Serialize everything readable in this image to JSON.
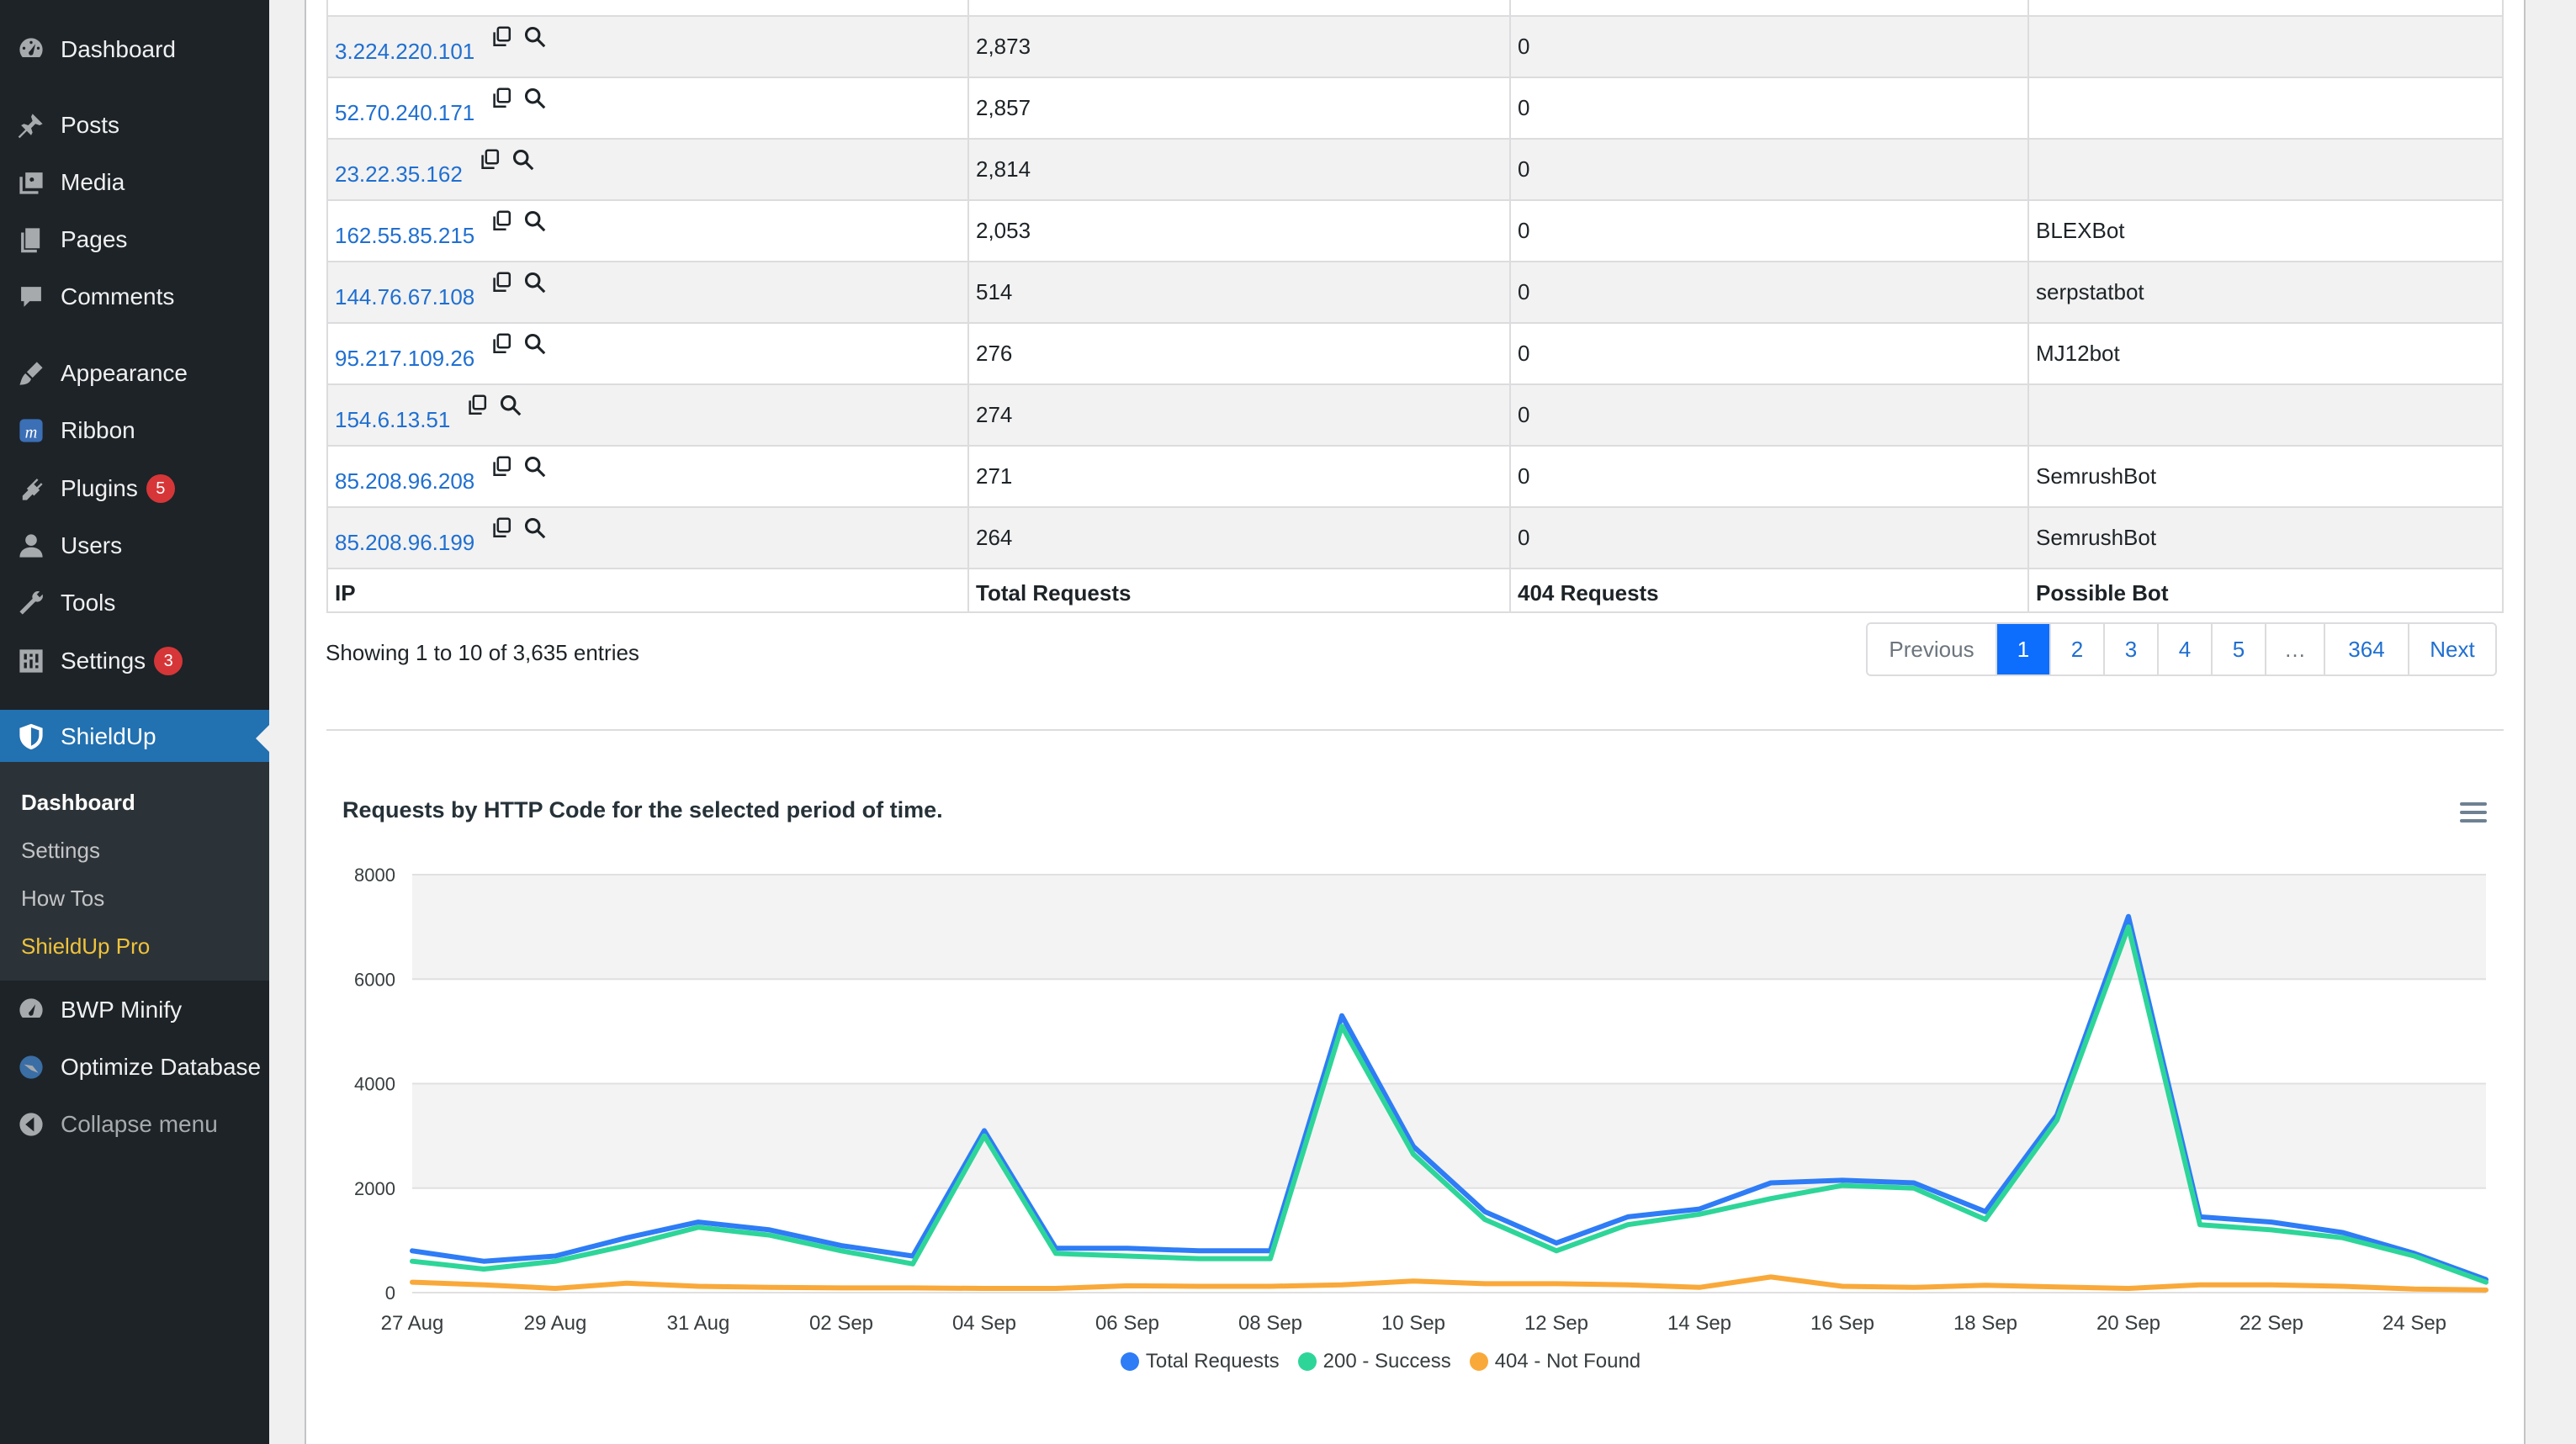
{
  "sidebar": {
    "items": [
      {
        "label": "Dashboard",
        "icon": "dashboard-icon"
      },
      {
        "label": "Posts",
        "icon": "pin-icon"
      },
      {
        "label": "Media",
        "icon": "media-icon"
      },
      {
        "label": "Pages",
        "icon": "pages-icon"
      },
      {
        "label": "Comments",
        "icon": "comment-icon"
      },
      {
        "label": "Appearance",
        "icon": "brush-icon"
      },
      {
        "label": "Ribbon",
        "icon": "ribbon-icon"
      },
      {
        "label": "Plugins",
        "icon": "plugin-icon",
        "badge": "5"
      },
      {
        "label": "Users",
        "icon": "user-icon"
      },
      {
        "label": "Tools",
        "icon": "wrench-icon"
      },
      {
        "label": "Settings",
        "icon": "settings-icon",
        "badge": "3"
      },
      {
        "label": "ShieldUp",
        "icon": "shield-icon"
      },
      {
        "label": "BWP Minify",
        "icon": "dashboard-icon"
      },
      {
        "label": "Optimize Database",
        "icon": "database-icon"
      },
      {
        "label": "Collapse menu",
        "icon": "collapse-icon"
      }
    ],
    "submenu": [
      "Dashboard",
      "Settings",
      "How Tos",
      "ShieldUp Pro"
    ]
  },
  "table": {
    "headers": [
      "IP",
      "Total Requests",
      "404 Requests",
      "Possible Bot"
    ],
    "rows": [
      {
        "ip": "3.224.220.101",
        "total": "2,873",
        "r404": "0",
        "bot": ""
      },
      {
        "ip": "52.70.240.171",
        "total": "2,857",
        "r404": "0",
        "bot": ""
      },
      {
        "ip": "23.22.35.162",
        "total": "2,814",
        "r404": "0",
        "bot": ""
      },
      {
        "ip": "162.55.85.215",
        "total": "2,053",
        "r404": "0",
        "bot": "BLEXBot"
      },
      {
        "ip": "144.76.67.108",
        "total": "514",
        "r404": "0",
        "bot": "serpstatbot"
      },
      {
        "ip": "95.217.109.26",
        "total": "276",
        "r404": "0",
        "bot": "MJ12bot"
      },
      {
        "ip": "154.6.13.51",
        "total": "274",
        "r404": "0",
        "bot": ""
      },
      {
        "ip": "85.208.96.208",
        "total": "271",
        "r404": "0",
        "bot": "SemrushBot"
      },
      {
        "ip": "85.208.96.199",
        "total": "264",
        "r404": "0",
        "bot": "SemrushBot"
      }
    ]
  },
  "entries_info": "Showing 1 to 10 of 3,635 entries",
  "pagination": {
    "previous": "Previous",
    "pages": [
      "1",
      "2",
      "3",
      "4",
      "5",
      "…",
      "364"
    ],
    "current": "1",
    "next": "Next"
  },
  "chart_data": {
    "type": "line",
    "title": "Requests by HTTP Code for the selected period of time.",
    "ylim": [
      0,
      8000
    ],
    "yticks": [
      0,
      2000,
      4000,
      6000,
      8000
    ],
    "x": [
      "27 Aug",
      "28 Aug",
      "29 Aug",
      "30 Aug",
      "31 Aug",
      "01 Sep",
      "02 Sep",
      "03 Sep",
      "04 Sep",
      "05 Sep",
      "06 Sep",
      "07 Sep",
      "08 Sep",
      "09 Sep",
      "10 Sep",
      "11 Sep",
      "12 Sep",
      "13 Sep",
      "14 Sep",
      "15 Sep",
      "16 Sep",
      "17 Sep",
      "18 Sep",
      "19 Sep",
      "20 Sep",
      "21 Sep",
      "22 Sep",
      "23 Sep",
      "24 Sep",
      "25 Sep"
    ],
    "xtick_labels": [
      "27 Aug",
      "29 Aug",
      "31 Aug",
      "02 Sep",
      "04 Sep",
      "06 Sep",
      "08 Sep",
      "10 Sep",
      "12 Sep",
      "14 Sep",
      "16 Sep",
      "18 Sep",
      "20 Sep",
      "22 Sep",
      "24 Sep"
    ],
    "series": [
      {
        "name": "Total Requests",
        "color": "#2e7cf6",
        "values": [
          800,
          600,
          700,
          1050,
          1350,
          1200,
          900,
          700,
          3100,
          850,
          850,
          800,
          800,
          5300,
          2800,
          1550,
          950,
          1450,
          1600,
          2100,
          2150,
          2100,
          1550,
          3400,
          7200,
          1450,
          1350,
          1150,
          750,
          250
        ]
      },
      {
        "name": "200 - Success",
        "color": "#2ed599",
        "values": [
          600,
          450,
          600,
          900,
          1250,
          1100,
          800,
          550,
          3000,
          750,
          700,
          650,
          650,
          5100,
          2650,
          1400,
          800,
          1300,
          1500,
          1800,
          2050,
          2000,
          1400,
          3300,
          7000,
          1300,
          1200,
          1050,
          700,
          200
        ]
      },
      {
        "name": "404 - Not Found",
        "color": "#f9a93a",
        "values": [
          200,
          150,
          80,
          180,
          120,
          100,
          90,
          90,
          80,
          80,
          130,
          120,
          120,
          150,
          220,
          170,
          170,
          150,
          100,
          300,
          120,
          100,
          140,
          110,
          80,
          150,
          150,
          120,
          70,
          50
        ]
      }
    ],
    "legend": "bottom",
    "grid": true
  }
}
